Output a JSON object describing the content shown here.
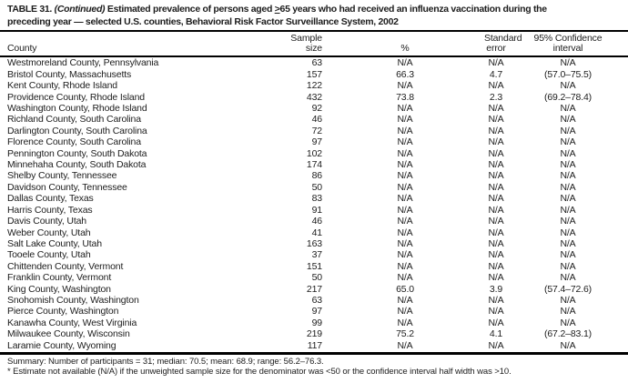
{
  "title": {
    "label": "TABLE 31.",
    "continued": "(Continued)",
    "line1_pre": "Estimated prevalence of persons aged",
    "line1_geq": ">",
    "line1_post": "65 years who had received an influenza vaccination during the",
    "line2": "preceding year — selected U.S. counties, Behavioral Risk Factor Surveillance System, 2002"
  },
  "columns": {
    "county": "County",
    "sample_line1": "Sample",
    "sample_line2": "size",
    "pct": "%",
    "stderr_line1": "Standard",
    "stderr_line2": "error",
    "ci_line1": "95% Confidence",
    "ci_line2": "interval"
  },
  "table": {
    "rows": [
      {
        "county": "Westmoreland County, Pennsylvania",
        "sample": "63",
        "pct": "N/A",
        "stderr": "N/A",
        "ci": "N/A"
      },
      {
        "county": "Bristol County, Massachusetts",
        "sample": "157",
        "pct": "66.3",
        "stderr": "4.7",
        "ci": "(57.0–75.5)"
      },
      {
        "county": "Kent County, Rhode Island",
        "sample": "122",
        "pct": "N/A",
        "stderr": "N/A",
        "ci": "N/A"
      },
      {
        "county": "Providence County, Rhode Island",
        "sample": "432",
        "pct": "73.8",
        "stderr": "2.3",
        "ci": "(69.2–78.4)"
      },
      {
        "county": "Washington County, Rhode Island",
        "sample": "92",
        "pct": "N/A",
        "stderr": "N/A",
        "ci": "N/A"
      },
      {
        "county": "Richland County, South Carolina",
        "sample": "46",
        "pct": "N/A",
        "stderr": "N/A",
        "ci": "N/A"
      },
      {
        "county": "Darlington County, South Carolina",
        "sample": "72",
        "pct": "N/A",
        "stderr": "N/A",
        "ci": "N/A"
      },
      {
        "county": "Florence County, South Carolina",
        "sample": "97",
        "pct": "N/A",
        "stderr": "N/A",
        "ci": "N/A"
      },
      {
        "county": "Pennington County, South Dakota",
        "sample": "102",
        "pct": "N/A",
        "stderr": "N/A",
        "ci": "N/A"
      },
      {
        "county": "Minnehaha County, South Dakota",
        "sample": "174",
        "pct": "N/A",
        "stderr": "N/A",
        "ci": "N/A"
      },
      {
        "county": "Shelby County, Tennessee",
        "sample": "86",
        "pct": "N/A",
        "stderr": "N/A",
        "ci": "N/A"
      },
      {
        "county": "Davidson County, Tennessee",
        "sample": "50",
        "pct": "N/A",
        "stderr": "N/A",
        "ci": "N/A"
      },
      {
        "county": "Dallas County, Texas",
        "sample": "83",
        "pct": "N/A",
        "stderr": "N/A",
        "ci": "N/A"
      },
      {
        "county": "Harris County, Texas",
        "sample": "91",
        "pct": "N/A",
        "stderr": "N/A",
        "ci": "N/A"
      },
      {
        "county": "Davis County, Utah",
        "sample": "46",
        "pct": "N/A",
        "stderr": "N/A",
        "ci": "N/A"
      },
      {
        "county": "Weber County, Utah",
        "sample": "41",
        "pct": "N/A",
        "stderr": "N/A",
        "ci": "N/A"
      },
      {
        "county": "Salt Lake County, Utah",
        "sample": "163",
        "pct": "N/A",
        "stderr": "N/A",
        "ci": "N/A"
      },
      {
        "county": "Tooele County, Utah",
        "sample": "37",
        "pct": "N/A",
        "stderr": "N/A",
        "ci": "N/A"
      },
      {
        "county": "Chittenden County, Vermont",
        "sample": "151",
        "pct": "N/A",
        "stderr": "N/A",
        "ci": "N/A"
      },
      {
        "county": "Franklin County, Vermont",
        "sample": "50",
        "pct": "N/A",
        "stderr": "N/A",
        "ci": "N/A"
      },
      {
        "county": "King County, Washington",
        "sample": "217",
        "pct": "65.0",
        "stderr": "3.9",
        "ci": "(57.4–72.6)"
      },
      {
        "county": "Snohomish County, Washington",
        "sample": "63",
        "pct": "N/A",
        "stderr": "N/A",
        "ci": "N/A"
      },
      {
        "county": "Pierce County, Washington",
        "sample": "97",
        "pct": "N/A",
        "stderr": "N/A",
        "ci": "N/A"
      },
      {
        "county": "Kanawha County, West Virginia",
        "sample": "99",
        "pct": "N/A",
        "stderr": "N/A",
        "ci": "N/A"
      },
      {
        "county": "Milwaukee County, Wisconsin",
        "sample": "219",
        "pct": "75.2",
        "stderr": "4.1",
        "ci": "(67.2–83.1)"
      },
      {
        "county": "Laramie County, Wyoming",
        "sample": "117",
        "pct": "N/A",
        "stderr": "N/A",
        "ci": "N/A"
      }
    ]
  },
  "summary": "Summary: Number of participants = 31; median: 70.5; mean: 68.9; range: 56.2–76.3.",
  "footnote": "* Estimate not available (N/A) if the unweighted sample size for the denominator was <50 or the confidence interval half width was >10.",
  "colors": {
    "text": "#1c1c1c",
    "rule": "#000000",
    "background": "#ffffff"
  }
}
